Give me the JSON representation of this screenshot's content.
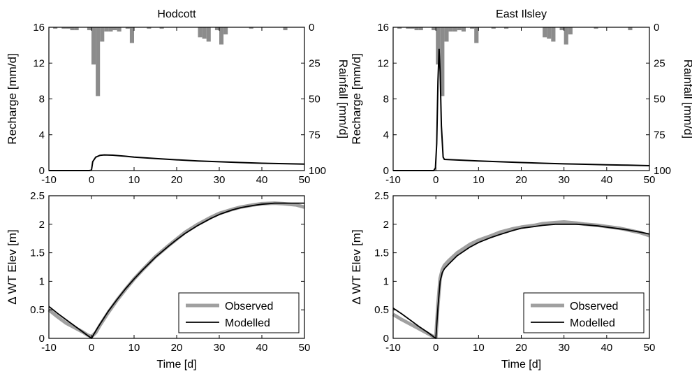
{
  "chart_data": [
    {
      "type": "bar+line",
      "title": "Hodcott",
      "xlim": [
        -10,
        50
      ],
      "xticks": [
        -10,
        0,
        10,
        20,
        30,
        40,
        50
      ],
      "ylabel": "Recharge [mm/d]",
      "ylim": [
        0,
        16
      ],
      "yticks": [
        0,
        4,
        8,
        12,
        16
      ],
      "y2label": "Rainfall [mm/d]",
      "y2lim": [
        0,
        100
      ],
      "y2ticks": [
        0,
        25,
        50,
        75,
        100
      ],
      "y2_direction": "reversed",
      "rainfall": [
        [
          -9,
          1
        ],
        [
          -7,
          1
        ],
        [
          -6,
          1
        ],
        [
          -5,
          2
        ],
        [
          -4,
          2
        ],
        [
          -1,
          2
        ],
        [
          0,
          26
        ],
        [
          1,
          48
        ],
        [
          2,
          10
        ],
        [
          3,
          3
        ],
        [
          4,
          3
        ],
        [
          5,
          2
        ],
        [
          6,
          3
        ],
        [
          8,
          1
        ],
        [
          9,
          11
        ],
        [
          13,
          1
        ],
        [
          16,
          1
        ],
        [
          25,
          7
        ],
        [
          26,
          8
        ],
        [
          27,
          10
        ],
        [
          29,
          2
        ],
        [
          30,
          12
        ],
        [
          31,
          5
        ],
        [
          37,
          1
        ],
        [
          45,
          2
        ]
      ],
      "recharge": [
        [
          -10,
          0
        ],
        [
          -0.5,
          0
        ],
        [
          0,
          0.05
        ],
        [
          0.3,
          1.0
        ],
        [
          1,
          1.5
        ],
        [
          2,
          1.7
        ],
        [
          3,
          1.75
        ],
        [
          5,
          1.72
        ],
        [
          8,
          1.6
        ],
        [
          10,
          1.5
        ],
        [
          15,
          1.35
        ],
        [
          20,
          1.2
        ],
        [
          25,
          1.08
        ],
        [
          30,
          0.98
        ],
        [
          35,
          0.9
        ],
        [
          40,
          0.82
        ],
        [
          45,
          0.77
        ],
        [
          50,
          0.72
        ]
      ]
    },
    {
      "type": "bar+line",
      "title": "East Ilsley",
      "xlim": [
        -10,
        50
      ],
      "xticks": [
        -10,
        0,
        10,
        20,
        30,
        40,
        50
      ],
      "ylabel": "Recharge [mm/d]",
      "ylim": [
        0,
        16
      ],
      "yticks": [
        0,
        4,
        8,
        12,
        16
      ],
      "y2label": "Rainfall [mm/d]",
      "y2lim": [
        0,
        100
      ],
      "y2ticks": [
        0,
        25,
        50,
        75,
        100
      ],
      "y2_direction": "reversed",
      "rainfall": [
        [
          -9,
          1
        ],
        [
          -7,
          1
        ],
        [
          -6,
          1
        ],
        [
          -5,
          2
        ],
        [
          -4,
          2
        ],
        [
          -1,
          2
        ],
        [
          0,
          26
        ],
        [
          1,
          48
        ],
        [
          2,
          10
        ],
        [
          3,
          3
        ],
        [
          4,
          3
        ],
        [
          5,
          2
        ],
        [
          6,
          3
        ],
        [
          8,
          1
        ],
        [
          9,
          11
        ],
        [
          13,
          1
        ],
        [
          16,
          1
        ],
        [
          25,
          7
        ],
        [
          26,
          8
        ],
        [
          27,
          10
        ],
        [
          29,
          2
        ],
        [
          30,
          12
        ],
        [
          31,
          5
        ],
        [
          37,
          1
        ],
        [
          45,
          2
        ]
      ],
      "recharge": [
        [
          -10,
          0
        ],
        [
          -0.5,
          0
        ],
        [
          -0.1,
          0.3
        ],
        [
          0.2,
          3
        ],
        [
          0.5,
          10
        ],
        [
          0.75,
          13.6
        ],
        [
          1,
          11
        ],
        [
          1.3,
          5
        ],
        [
          1.7,
          1.5
        ],
        [
          2,
          1.25
        ],
        [
          5,
          1.18
        ],
        [
          10,
          1.08
        ],
        [
          15,
          0.98
        ],
        [
          20,
          0.9
        ],
        [
          25,
          0.82
        ],
        [
          30,
          0.75
        ],
        [
          35,
          0.7
        ],
        [
          40,
          0.65
        ],
        [
          45,
          0.6
        ],
        [
          50,
          0.55
        ]
      ]
    },
    {
      "type": "line",
      "xlabel": "Time [d]",
      "xlim": [
        -10,
        50
      ],
      "xticks": [
        -10,
        0,
        10,
        20,
        30,
        40,
        50
      ],
      "ylabel": "Δ WT Elev [m]",
      "ylim": [
        0,
        2.5
      ],
      "yticks": [
        0,
        0.5,
        1,
        1.5,
        2,
        2.5
      ],
      "legend": "bottom-right",
      "series": [
        {
          "name": "Observed",
          "color": "#a0a0a0",
          "points": [
            [
              -10,
              0.5
            ],
            [
              -8,
              0.38
            ],
            [
              -6,
              0.27
            ],
            [
              -4,
              0.19
            ],
            [
              -2,
              0.11
            ],
            [
              -1,
              0.06
            ],
            [
              0,
              0.03
            ],
            [
              1,
              0.1
            ],
            [
              2,
              0.23
            ],
            [
              4,
              0.46
            ],
            [
              6,
              0.67
            ],
            [
              8,
              0.86
            ],
            [
              10,
              1.04
            ],
            [
              12,
              1.2
            ],
            [
              15,
              1.43
            ],
            [
              18,
              1.62
            ],
            [
              20,
              1.74
            ],
            [
              22,
              1.86
            ],
            [
              25,
              2.0
            ],
            [
              28,
              2.12
            ],
            [
              30,
              2.19
            ],
            [
              33,
              2.26
            ],
            [
              35,
              2.3
            ],
            [
              38,
              2.34
            ],
            [
              40,
              2.36
            ],
            [
              43,
              2.37
            ],
            [
              45,
              2.36
            ],
            [
              48,
              2.34
            ],
            [
              50,
              2.3
            ]
          ]
        },
        {
          "name": "Modelled",
          "color": "#000000",
          "points": [
            [
              -10,
              0.56
            ],
            [
              -8,
              0.44
            ],
            [
              -6,
              0.33
            ],
            [
              -4,
              0.22
            ],
            [
              -2,
              0.11
            ],
            [
              0,
              0.0
            ],
            [
              1,
              0.13
            ],
            [
              2,
              0.25
            ],
            [
              4,
              0.48
            ],
            [
              6,
              0.68
            ],
            [
              8,
              0.87
            ],
            [
              10,
              1.04
            ],
            [
              12,
              1.2
            ],
            [
              15,
              1.42
            ],
            [
              18,
              1.61
            ],
            [
              20,
              1.73
            ],
            [
              22,
              1.84
            ],
            [
              25,
              1.98
            ],
            [
              28,
              2.1
            ],
            [
              30,
              2.17
            ],
            [
              33,
              2.25
            ],
            [
              35,
              2.29
            ],
            [
              38,
              2.33
            ],
            [
              40,
              2.35
            ],
            [
              43,
              2.37
            ],
            [
              45,
              2.37
            ],
            [
              48,
              2.37
            ],
            [
              50,
              2.37
            ]
          ]
        }
      ]
    },
    {
      "type": "line",
      "xlabel": "Time [d]",
      "xlim": [
        -10,
        50
      ],
      "xticks": [
        -10,
        0,
        10,
        20,
        30,
        40,
        50
      ],
      "ylabel": "Δ WT Elev [m]",
      "ylim": [
        0,
        2.5
      ],
      "yticks": [
        0,
        0.5,
        1,
        1.5,
        2,
        2.5
      ],
      "legend": "bottom-right",
      "series": [
        {
          "name": "Observed",
          "color": "#a0a0a0",
          "points": [
            [
              -10,
              0.42
            ],
            [
              -8,
              0.33
            ],
            [
              -6,
              0.25
            ],
            [
              -4,
              0.17
            ],
            [
              -2,
              0.09
            ],
            [
              -0.5,
              0.03
            ],
            [
              0,
              0.02
            ],
            [
              0.5,
              0.6
            ],
            [
              1,
              1.05
            ],
            [
              1.5,
              1.2
            ],
            [
              2,
              1.28
            ],
            [
              3,
              1.36
            ],
            [
              5,
              1.5
            ],
            [
              8,
              1.65
            ],
            [
              10,
              1.72
            ],
            [
              13,
              1.8
            ],
            [
              15,
              1.86
            ],
            [
              18,
              1.92
            ],
            [
              20,
              1.95
            ],
            [
              23,
              1.98
            ],
            [
              25,
              2.01
            ],
            [
              28,
              2.03
            ],
            [
              30,
              2.04
            ],
            [
              33,
              2.02
            ],
            [
              35,
              2.0
            ],
            [
              38,
              1.98
            ],
            [
              40,
              1.96
            ],
            [
              43,
              1.93
            ],
            [
              45,
              1.9
            ],
            [
              48,
              1.85
            ],
            [
              50,
              1.8
            ]
          ]
        },
        {
          "name": "Modelled",
          "color": "#000000",
          "points": [
            [
              -10,
              0.53
            ],
            [
              -8,
              0.43
            ],
            [
              -6,
              0.32
            ],
            [
              -4,
              0.21
            ],
            [
              -2,
              0.11
            ],
            [
              -0.2,
              0.01
            ],
            [
              0,
              0.0
            ],
            [
              0.5,
              0.55
            ],
            [
              1,
              1.0
            ],
            [
              1.5,
              1.15
            ],
            [
              2,
              1.22
            ],
            [
              3,
              1.3
            ],
            [
              5,
              1.45
            ],
            [
              8,
              1.6
            ],
            [
              10,
              1.68
            ],
            [
              13,
              1.77
            ],
            [
              15,
              1.82
            ],
            [
              18,
              1.89
            ],
            [
              20,
              1.93
            ],
            [
              23,
              1.96
            ],
            [
              25,
              1.98
            ],
            [
              28,
              2.0
            ],
            [
              30,
              2.0
            ],
            [
              33,
              2.0
            ],
            [
              35,
              1.99
            ],
            [
              38,
              1.97
            ],
            [
              40,
              1.95
            ],
            [
              43,
              1.92
            ],
            [
              45,
              1.9
            ],
            [
              48,
              1.86
            ],
            [
              50,
              1.83
            ]
          ]
        }
      ]
    }
  ]
}
